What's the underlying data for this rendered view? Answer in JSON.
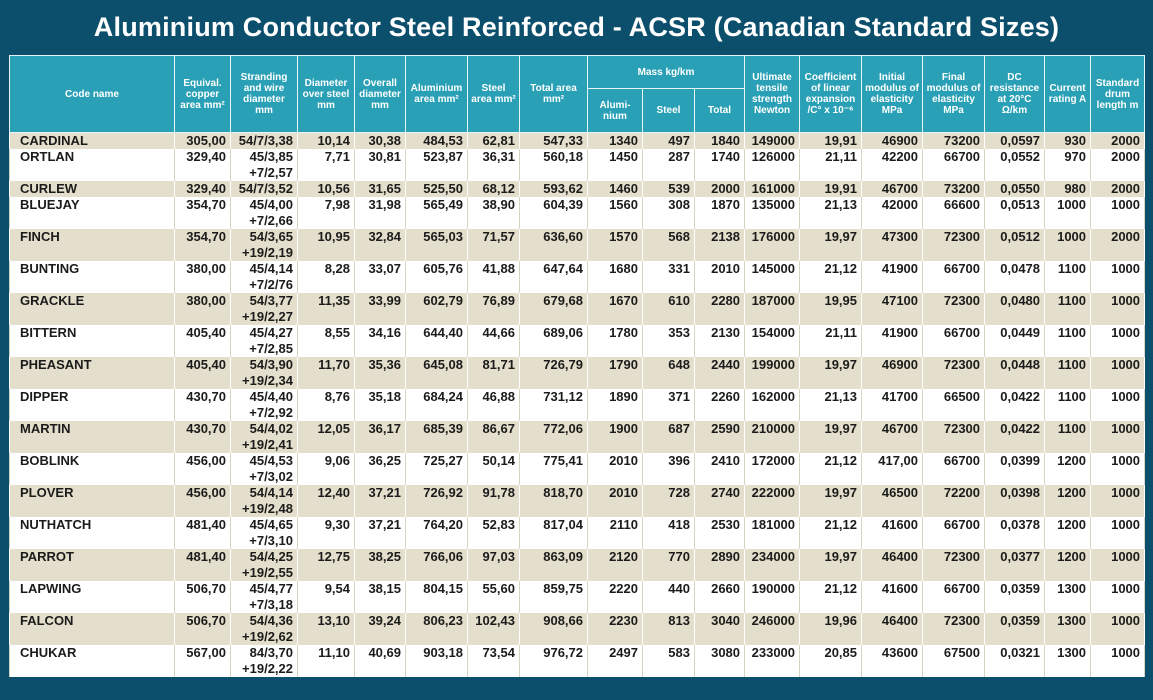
{
  "header": {
    "title": "Aluminium Conductor Steel Reinforced - ACSR (Canadian Standard Sizes)"
  },
  "table": {
    "group": "Mass kg/km",
    "columns": [
      "Code name",
      "Equival. copper area mm²",
      "Stranding and wire diameter mm",
      "Diameter over steel mm",
      "Overall diameter mm",
      "Aluminium area mm²",
      "Steel area mm²",
      "Total area mm²",
      "Alumi-nium",
      "Steel",
      "Total",
      "Ultimate tensile strength Newton",
      "Coefficient of linear expansion /C° x 10⁻⁶",
      "Initial modulus of elasticity MPa",
      "Final modulus of elasticity MPa",
      "DC resistance at 20°C Ω/km",
      "Current rating A",
      "Standard drum length m"
    ],
    "rows": [
      [
        "CARDINAL",
        "305,00",
        "54/7/3,38",
        "10,14",
        "30,38",
        "484,53",
        "62,81",
        "547,33",
        "1340",
        "497",
        "1840",
        "149000",
        "19,91",
        "46900",
        "73200",
        "0,0597",
        "930",
        "2000"
      ],
      [
        "ORTLAN",
        "329,40",
        "45/3,85\n+7/2,57",
        "7,71",
        "30,81",
        "523,87",
        "36,31",
        "560,18",
        "1450",
        "287",
        "1740",
        "126000",
        "21,11",
        "42200",
        "66700",
        "0,0552",
        "970",
        "2000"
      ],
      [
        "CURLEW",
        "329,40",
        "54/7/3,52",
        "10,56",
        "31,65",
        "525,50",
        "68,12",
        "593,62",
        "1460",
        "539",
        "2000",
        "161000",
        "19,91",
        "46700",
        "73200",
        "0,0550",
        "980",
        "2000"
      ],
      [
        "BLUEJAY",
        "354,70",
        "45/4,00\n+7/2,66",
        "7,98",
        "31,98",
        "565,49",
        "38,90",
        "604,39",
        "1560",
        "308",
        "1870",
        "135000",
        "21,13",
        "42000",
        "66600",
        "0,0513",
        "1000",
        "1000"
      ],
      [
        "FINCH",
        "354,70",
        "54/3,65\n+19/2,19",
        "10,95",
        "32,84",
        "565,03",
        "71,57",
        "636,60",
        "1570",
        "568",
        "2138",
        "176000",
        "19,97",
        "47300",
        "72300",
        "0,0512",
        "1000",
        "2000"
      ],
      [
        "BUNTING",
        "380,00",
        "45/4,14\n+7/2/76",
        "8,28",
        "33,07",
        "605,76",
        "41,88",
        "647,64",
        "1680",
        "331",
        "2010",
        "145000",
        "21,12",
        "41900",
        "66700",
        "0,0478",
        "1100",
        "1000"
      ],
      [
        "GRACKLE",
        "380,00",
        "54/3,77\n+19/2,27",
        "11,35",
        "33,99",
        "602,79",
        "76,89",
        "679,68",
        "1670",
        "610",
        "2280",
        "187000",
        "19,95",
        "47100",
        "72300",
        "0,0480",
        "1100",
        "1000"
      ],
      [
        "BITTERN",
        "405,40",
        "45/4,27\n+7/2,85",
        "8,55",
        "34,16",
        "644,40",
        "44,66",
        "689,06",
        "1780",
        "353",
        "2130",
        "154000",
        "21,11",
        "41900",
        "66700",
        "0,0449",
        "1100",
        "1000"
      ],
      [
        "PHEASANT",
        "405,40",
        "54/3,90\n+19/2,34",
        "11,70",
        "35,36",
        "645,08",
        "81,71",
        "726,79",
        "1790",
        "648",
        "2440",
        "199000",
        "19,97",
        "46900",
        "72300",
        "0,0448",
        "1100",
        "1000"
      ],
      [
        "DIPPER",
        "430,70",
        "45/4,40\n+7/2,92",
        "8,76",
        "35,18",
        "684,24",
        "46,88",
        "731,12",
        "1890",
        "371",
        "2260",
        "162000",
        "21,13",
        "41700",
        "66500",
        "0,0422",
        "1100",
        "1000"
      ],
      [
        "MARTIN",
        "430,70",
        "54/4,02\n+19/2,41",
        "12,05",
        "36,17",
        "685,39",
        "86,67",
        "772,06",
        "1900",
        "687",
        "2590",
        "210000",
        "19,97",
        "46700",
        "72300",
        "0,0422",
        "1100",
        "1000"
      ],
      [
        "BOBLINK",
        "456,00",
        "45/4,53\n+7/3,02",
        "9,06",
        "36,25",
        "725,27",
        "50,14",
        "775,41",
        "2010",
        "396",
        "2410",
        "172000",
        "21,12",
        "417,00",
        "66700",
        "0,0399",
        "1200",
        "1000"
      ],
      [
        "PLOVER",
        "456,00",
        "54/4,14\n+19/2,48",
        "12,40",
        "37,21",
        "726,92",
        "91,78",
        "818,70",
        "2010",
        "728",
        "2740",
        "222000",
        "19,97",
        "46500",
        "72200",
        "0,0398",
        "1200",
        "1000"
      ],
      [
        "NUTHATCH",
        "481,40",
        "45/4,65\n+7/3,10",
        "9,30",
        "37,21",
        "764,20",
        "52,83",
        "817,04",
        "2110",
        "418",
        "2530",
        "181000",
        "21,12",
        "41600",
        "66700",
        "0,0378",
        "1200",
        "1000"
      ],
      [
        "PARROT",
        "481,40",
        "54/4,25\n+19/2,55",
        "12,75",
        "38,25",
        "766,06",
        "97,03",
        "863,09",
        "2120",
        "770",
        "2890",
        "234000",
        "19,97",
        "46400",
        "72300",
        "0,0377",
        "1200",
        "1000"
      ],
      [
        "LAPWING",
        "506,70",
        "45/4,77\n+7/3,18",
        "9,54",
        "38,15",
        "804,15",
        "55,60",
        "859,75",
        "2220",
        "440",
        "2660",
        "190000",
        "21,12",
        "41600",
        "66700",
        "0,0359",
        "1300",
        "1000"
      ],
      [
        "FALCON",
        "506,70",
        "54/4,36\n+19/2,62",
        "13,10",
        "39,24",
        "806,23",
        "102,43",
        "908,66",
        "2230",
        "813",
        "3040",
        "246000",
        "19,96",
        "46400",
        "72300",
        "0,0359",
        "1300",
        "1000"
      ],
      [
        "CHUKAR",
        "567,00",
        "84/3,70\n+19/2,22",
        "11,10",
        "40,69",
        "903,18",
        "73,54",
        "976,72",
        "2497",
        "583",
        "3080",
        "233000",
        "20,85",
        "43600",
        "67500",
        "0,0321",
        "1300",
        "1000"
      ]
    ]
  }
}
